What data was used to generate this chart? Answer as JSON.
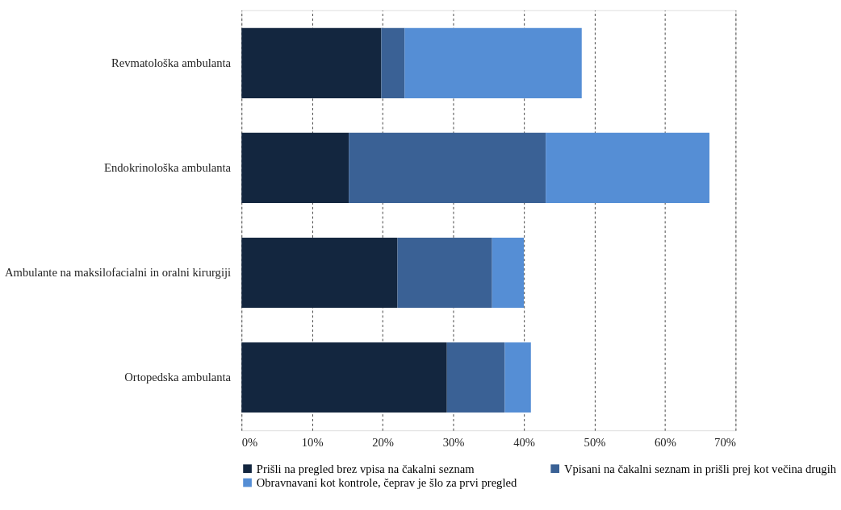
{
  "chart_data": {
    "type": "bar",
    "orientation": "horizontal",
    "stacked": true,
    "categories": [
      "Revmatološka ambulanta",
      "Endokrinološka ambulanta",
      "Ambulante na maksilofacialni in oralni kirurgiji",
      "Ortopedska ambulanta"
    ],
    "series": [
      {
        "name": "Prišli na pregled brez vpisa na čakalni seznam",
        "color": "#13263f",
        "values": [
          19.8,
          15.2,
          22.1,
          29.1
        ]
      },
      {
        "name": "Vpisani na čakalni seznam in prišli prej kot večina drugih",
        "color": "#3a6195",
        "values": [
          3.3,
          27.9,
          13.4,
          8.2
        ]
      },
      {
        "name": "Obravnavani kot kontrole, čeprav je šlo za prvi pregled",
        "color": "#558ed5",
        "values": [
          25.1,
          23.2,
          4.5,
          3.7
        ]
      }
    ],
    "xlim": [
      0,
      70
    ],
    "xticks": [
      {
        "value": 0,
        "label": "0%"
      },
      {
        "value": 10,
        "label": "10%"
      },
      {
        "value": 20,
        "label": "20%"
      },
      {
        "value": 30,
        "label": "30%"
      },
      {
        "value": 40,
        "label": "40%"
      },
      {
        "value": 50,
        "label": "50%"
      },
      {
        "value": 60,
        "label": "60%"
      },
      {
        "value": 70,
        "label": "70%"
      }
    ],
    "grid": "x",
    "legend": "bottom"
  }
}
